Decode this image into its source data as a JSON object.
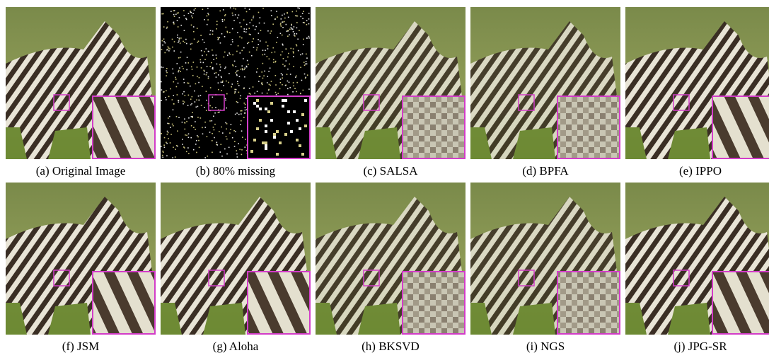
{
  "figure": {
    "panels": [
      {
        "label": "(a) Original Image"
      },
      {
        "label": "(b) 80% missing"
      },
      {
        "label": "(c) SALSA"
      },
      {
        "label": "(d) BPFA"
      },
      {
        "label": "(e) IPPO"
      },
      {
        "label": "(f) JSM"
      },
      {
        "label": "(g) Aloha"
      },
      {
        "label": "(h) BKSVD"
      },
      {
        "label": "(i) NGS"
      },
      {
        "label": "(j) JPG-SR"
      }
    ]
  }
}
